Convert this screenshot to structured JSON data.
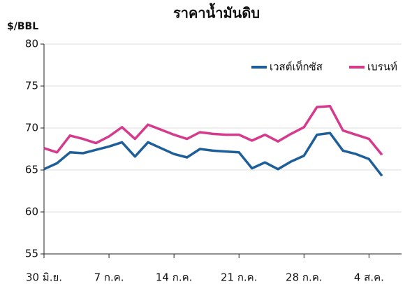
{
  "chart_data": {
    "type": "line",
    "title": "ราคาน้ำมันดิบ",
    "y_label": "$/BBL",
    "categories": [
      "30 มิ.ย.",
      null,
      null,
      null,
      null,
      "7 ก.ค.",
      null,
      null,
      null,
      null,
      "14 ก.ค.",
      null,
      null,
      null,
      null,
      "21 ก.ค.",
      null,
      null,
      null,
      null,
      "28 ก.ค.",
      null,
      null,
      null,
      null,
      "4 ส.ค.",
      null
    ],
    "series": [
      {
        "name": "เวสต์เท็กซัส",
        "color": "#1f5f99",
        "values": [
          65.1,
          65.8,
          67.1,
          67.0,
          67.4,
          67.8,
          68.3,
          66.6,
          68.3,
          67.6,
          66.9,
          66.5,
          67.5,
          67.3,
          67.2,
          67.1,
          65.2,
          65.9,
          65.1,
          66.0,
          66.7,
          69.2,
          69.4,
          67.3,
          66.9,
          66.3,
          64.3
        ]
      },
      {
        "name": "เบรนท์",
        "color": "#d63a8c",
        "values": [
          67.6,
          67.1,
          69.1,
          68.7,
          68.2,
          69.0,
          70.1,
          68.7,
          70.4,
          69.8,
          69.2,
          68.7,
          69.5,
          69.3,
          69.2,
          69.2,
          68.5,
          69.2,
          68.4,
          69.3,
          70.1,
          72.5,
          72.6,
          69.7,
          69.2,
          68.7,
          66.8
        ]
      }
    ],
    "ylim": [
      55,
      80
    ],
    "yticks": [
      55,
      60,
      65,
      70,
      75,
      80
    ],
    "grid": true,
    "legend": "top-right"
  }
}
